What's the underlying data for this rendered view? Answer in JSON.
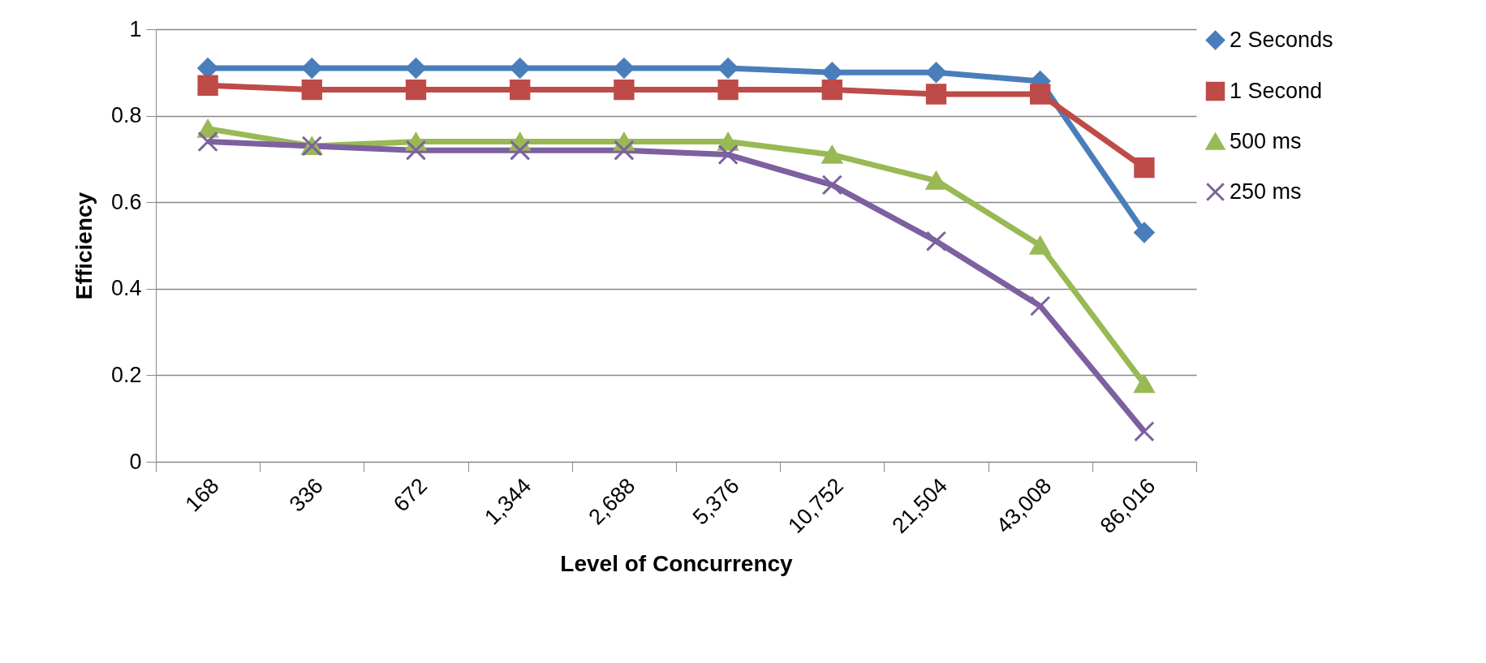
{
  "chart_data": {
    "type": "line",
    "xlabel": "Level of Concurrency",
    "ylabel": "Efficiency",
    "categories": [
      "168",
      "336",
      "672",
      "1,344",
      "2,688",
      "5,376",
      "10,752",
      "21,504",
      "43,008",
      "86,016"
    ],
    "series": [
      {
        "name": "2 Seconds",
        "color": "#4a7ebb",
        "marker": "diamond",
        "values": [
          0.91,
          0.91,
          0.91,
          0.91,
          0.91,
          0.91,
          0.9,
          0.9,
          0.88,
          0.53
        ]
      },
      {
        "name": "1 Second",
        "color": "#be4b48",
        "marker": "square",
        "values": [
          0.87,
          0.86,
          0.86,
          0.86,
          0.86,
          0.86,
          0.86,
          0.85,
          0.85,
          0.68
        ]
      },
      {
        "name": "500 ms",
        "color": "#98b954",
        "marker": "triangle",
        "values": [
          0.77,
          0.73,
          0.74,
          0.74,
          0.74,
          0.74,
          0.71,
          0.65,
          0.5,
          0.18
        ]
      },
      {
        "name": "250 ms",
        "color": "#7d60a0",
        "marker": "cross",
        "values": [
          0.74,
          0.73,
          0.72,
          0.72,
          0.72,
          0.71,
          0.64,
          0.51,
          0.36,
          0.07
        ]
      }
    ],
    "ylim": [
      0,
      1
    ],
    "yticks": [
      0,
      0.2,
      0.4,
      0.6,
      0.8,
      1
    ],
    "grid": "y",
    "legend": "right",
    "line_style": "solid"
  }
}
